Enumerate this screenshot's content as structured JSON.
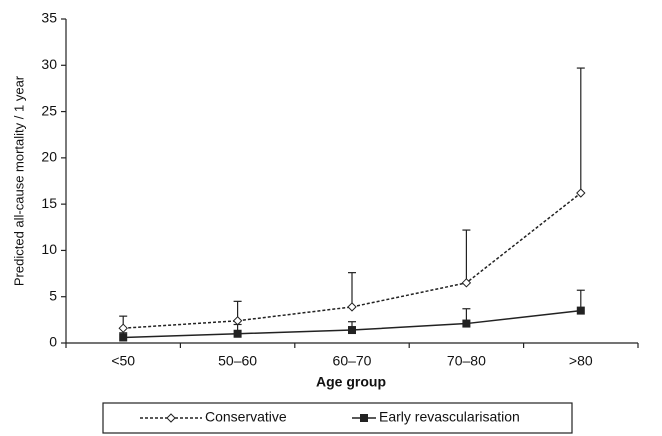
{
  "chart_data": {
    "type": "line",
    "x_label": "Age group",
    "y_label": "Predicted all-cause mortality / 1 year",
    "categories": [
      "<50",
      "50–60",
      "60–70",
      "70–80",
      ">80"
    ],
    "ylim": [
      0,
      35
    ],
    "yticks": [
      0,
      5,
      10,
      15,
      20,
      25,
      30,
      35
    ],
    "series": [
      {
        "name": "Conservative",
        "color": "#222222",
        "style": "dashed",
        "marker": "diamond",
        "values": [
          1.6,
          2.4,
          3.9,
          6.5,
          16.2
        ],
        "errors": [
          1.3,
          2.1,
          3.7,
          5.7,
          13.5
        ]
      },
      {
        "name": "Early revascularisation",
        "color": "#222222",
        "style": "solid",
        "marker": "square",
        "values": [
          0.6,
          1.0,
          1.4,
          2.1,
          3.5
        ],
        "errors": [
          0.5,
          1.0,
          0.9,
          1.6,
          2.2
        ]
      }
    ]
  }
}
